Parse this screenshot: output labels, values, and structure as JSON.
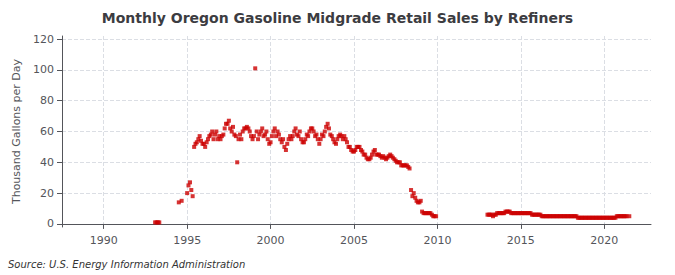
{
  "chart_data": {
    "type": "scatter",
    "title": "Monthly Oregon Gasoline Midgrade Retail Sales by Refiners",
    "ylabel": "Thousand Gallons per Day",
    "annotation": "Source: U.S. Energy Information Administration",
    "color": "#CC0000",
    "marker": "square",
    "grid": true,
    "xlim": [
      1987.5,
      2022.8
    ],
    "ylim": [
      -2,
      122
    ],
    "xticks": [
      1990,
      1995,
      2000,
      2005,
      2010,
      2015,
      2020
    ],
    "yticks": [
      0,
      20,
      40,
      60,
      80,
      100,
      120
    ],
    "x": [
      1993.08,
      1993.17,
      1993.25,
      1993.33,
      1994.5,
      1994.67,
      1995.0,
      1995.08,
      1995.17,
      1995.25,
      1995.33,
      1995.42,
      1995.5,
      1995.58,
      1995.67,
      1995.75,
      1995.83,
      1995.92,
      1996.0,
      1996.08,
      1996.17,
      1996.25,
      1996.33,
      1996.42,
      1996.5,
      1996.58,
      1996.67,
      1996.75,
      1996.83,
      1996.92,
      1997.0,
      1997.08,
      1997.17,
      1997.25,
      1997.33,
      1997.42,
      1997.5,
      1997.58,
      1997.67,
      1997.75,
      1997.83,
      1997.92,
      1998.0,
      1998.08,
      1998.17,
      1998.25,
      1998.33,
      1998.42,
      1998.5,
      1998.58,
      1998.67,
      1998.75,
      1998.83,
      1998.92,
      1999.0,
      1999.08,
      1999.17,
      1999.25,
      1999.33,
      1999.42,
      1999.5,
      1999.58,
      1999.67,
      1999.75,
      1999.83,
      1999.92,
      2000.0,
      2000.08,
      2000.17,
      2000.25,
      2000.33,
      2000.42,
      2000.5,
      2000.58,
      2000.67,
      2000.75,
      2000.83,
      2000.92,
      2001.0,
      2001.08,
      2001.17,
      2001.25,
      2001.33,
      2001.42,
      2001.5,
      2001.58,
      2001.67,
      2001.75,
      2001.83,
      2001.92,
      2002.0,
      2002.08,
      2002.17,
      2002.25,
      2002.33,
      2002.42,
      2002.5,
      2002.58,
      2002.67,
      2002.75,
      2002.83,
      2002.92,
      2003.0,
      2003.08,
      2003.17,
      2003.25,
      2003.33,
      2003.42,
      2003.5,
      2003.58,
      2003.67,
      2003.75,
      2003.83,
      2003.92,
      2004.0,
      2004.08,
      2004.17,
      2004.25,
      2004.33,
      2004.42,
      2004.5,
      2004.58,
      2004.67,
      2004.75,
      2004.83,
      2004.92,
      2005.0,
      2005.08,
      2005.17,
      2005.25,
      2005.33,
      2005.42,
      2005.5,
      2005.58,
      2005.67,
      2005.75,
      2005.83,
      2005.92,
      2006.0,
      2006.08,
      2006.17,
      2006.25,
      2006.33,
      2006.42,
      2006.5,
      2006.58,
      2006.67,
      2006.75,
      2006.83,
      2006.92,
      2007.0,
      2007.08,
      2007.17,
      2007.25,
      2007.33,
      2007.42,
      2007.5,
      2007.58,
      2007.67,
      2007.75,
      2007.83,
      2007.92,
      2008.0,
      2008.08,
      2008.17,
      2008.25,
      2008.33,
      2008.42,
      2008.5,
      2008.58,
      2008.67,
      2008.75,
      2008.83,
      2008.92,
      2009.0,
      2009.08,
      2009.17,
      2009.25,
      2009.33,
      2009.42,
      2009.5,
      2009.58,
      2009.67,
      2009.75,
      2009.83,
      2009.92,
      2013.0,
      2013.08,
      2013.17,
      2013.25,
      2013.33,
      2013.42,
      2013.5,
      2013.58,
      2013.67,
      2013.75,
      2013.83,
      2013.92,
      2014.0,
      2014.08,
      2014.17,
      2014.25,
      2014.33,
      2014.42,
      2014.5,
      2014.58,
      2014.67,
      2014.75,
      2014.83,
      2014.92,
      2015.0,
      2015.08,
      2015.17,
      2015.25,
      2015.33,
      2015.42,
      2015.5,
      2015.58,
      2015.67,
      2015.75,
      2015.83,
      2015.92,
      2016.0,
      2016.08,
      2016.17,
      2016.25,
      2016.33,
      2016.42,
      2016.5,
      2016.58,
      2016.67,
      2016.75,
      2016.83,
      2016.92,
      2017.0,
      2017.08,
      2017.17,
      2017.25,
      2017.33,
      2017.42,
      2017.5,
      2017.58,
      2017.67,
      2017.75,
      2017.83,
      2017.92,
      2018.0,
      2018.08,
      2018.17,
      2018.25,
      2018.33,
      2018.42,
      2018.5,
      2018.58,
      2018.67,
      2018.75,
      2018.83,
      2018.92,
      2019.0,
      2019.08,
      2019.17,
      2019.25,
      2019.33,
      2019.42,
      2019.5,
      2019.58,
      2019.67,
      2019.75,
      2019.83,
      2019.92,
      2020.0,
      2020.08,
      2020.17,
      2020.25,
      2020.33,
      2020.42,
      2020.5,
      2020.58,
      2020.67,
      2020.75,
      2020.83,
      2020.92,
      2021.0,
      2021.08,
      2021.17,
      2021.25,
      2021.33,
      2021.5
    ],
    "values": [
      1.0,
      1.0,
      1.0,
      1.0,
      14.0,
      15.0,
      20.0,
      25.0,
      27.0,
      22.0,
      18.0,
      50.0,
      52.0,
      53.0,
      55.0,
      57.0,
      54.0,
      52.0,
      52.0,
      50.0,
      53.0,
      55.0,
      57.0,
      58.0,
      60.0,
      55.0,
      58.0,
      60.0,
      55.0,
      57.0,
      55.0,
      57.0,
      58.0,
      62.0,
      65.0,
      65.0,
      67.0,
      62.0,
      60.0,
      63.0,
      58.0,
      57.0,
      40.0,
      55.0,
      58.0,
      55.0,
      60.0,
      62.0,
      62.0,
      63.0,
      62.0,
      60.0,
      57.0,
      55.0,
      57.0,
      101.0,
      60.0,
      55.0,
      58.0,
      60.0,
      62.0,
      57.0,
      58.0,
      60.0,
      55.0,
      52.0,
      53.0,
      57.0,
      60.0,
      62.0,
      57.0,
      60.0,
      58.0,
      55.0,
      53.0,
      55.0,
      50.0,
      48.0,
      52.0,
      55.0,
      57.0,
      55.0,
      57.0,
      60.0,
      62.0,
      58.0,
      57.0,
      60.0,
      55.0,
      53.0,
      53.0,
      55.0,
      58.0,
      57.0,
      60.0,
      62.0,
      62.0,
      60.0,
      57.0,
      58.0,
      55.0,
      52.0,
      55.0,
      58.0,
      57.0,
      60.0,
      63.0,
      65.0,
      62.0,
      58.0,
      57.0,
      55.0,
      53.0,
      52.0,
      55.0,
      57.0,
      58.0,
      57.0,
      55.0,
      57.0,
      55.0,
      53.0,
      50.0,
      50.0,
      48.0,
      47.0,
      47.0,
      48.0,
      50.0,
      50.0,
      50.0,
      48.0,
      47.0,
      45.0,
      45.0,
      43.0,
      42.0,
      42.0,
      43.0,
      45.0,
      47.0,
      48.0,
      45.0,
      45.0,
      45.0,
      44.0,
      43.0,
      44.0,
      43.0,
      42.0,
      43.0,
      44.0,
      45.0,
      44.0,
      43.0,
      42.0,
      41.0,
      40.0,
      40.0,
      40.0,
      38.0,
      38.0,
      38.0,
      38.0,
      38.0,
      37.0,
      36.0,
      22.0,
      18.0,
      20.0,
      17.0,
      15.0,
      14.0,
      14.0,
      15.0,
      8.0,
      7.0,
      7.0,
      7.0,
      7.0,
      7.0,
      7.0,
      6.0,
      5.0,
      5.0,
      5.0,
      6.0,
      6.0,
      6.0,
      6.0,
      5.0,
      6.0,
      6.0,
      7.0,
      7.0,
      7.0,
      7.0,
      7.0,
      7.0,
      8.0,
      8.0,
      8.0,
      8.0,
      7.0,
      7.0,
      7.0,
      7.0,
      7.0,
      7.0,
      7.0,
      7.0,
      7.0,
      7.0,
      7.0,
      7.0,
      7.0,
      7.0,
      7.0,
      6.0,
      6.0,
      6.0,
      6.0,
      6.0,
      6.0,
      6.0,
      5.0,
      5.0,
      5.0,
      5.0,
      5.0,
      5.0,
      5.0,
      5.0,
      5.0,
      5.0,
      5.0,
      5.0,
      5.0,
      5.0,
      5.0,
      5.0,
      5.0,
      5.0,
      5.0,
      5.0,
      5.0,
      5.0,
      5.0,
      5.0,
      5.0,
      5.0,
      4.0,
      4.0,
      4.0,
      4.0,
      4.0,
      4.0,
      4.0,
      4.0,
      4.0,
      4.0,
      4.0,
      4.0,
      4.0,
      4.0,
      4.0,
      4.0,
      4.0,
      4.0,
      4.0,
      4.0,
      4.0,
      4.0,
      4.0,
      4.0,
      4.0,
      4.0,
      4.0,
      4.0,
      5.0,
      5.0,
      5.0,
      5.0,
      5.0,
      5.0,
      5.0,
      5.0,
      5.0
    ]
  }
}
